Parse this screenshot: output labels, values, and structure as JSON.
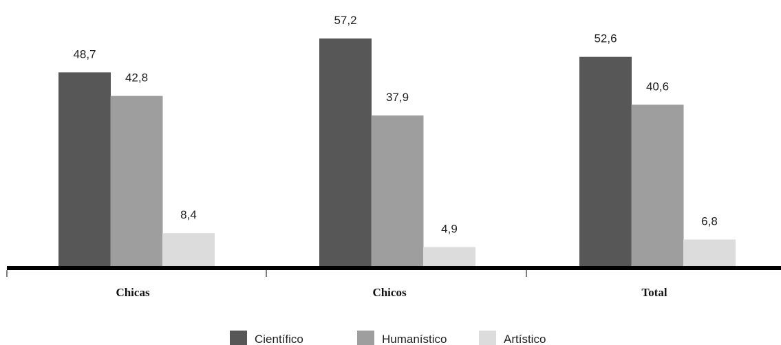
{
  "chart_data": {
    "type": "bar",
    "categories": [
      "Chicas",
      "Chicos",
      "Total"
    ],
    "series": [
      {
        "name": "Científico",
        "values": [
          48.7,
          57.2,
          52.6
        ],
        "labels": [
          "48,7",
          "57,2",
          "52,6"
        ],
        "color": "#575757"
      },
      {
        "name": "Humanístico",
        "values": [
          42.8,
          37.9,
          40.6
        ],
        "labels": [
          "42,8",
          "37,9",
          "40,6"
        ],
        "color": "#9e9e9e"
      },
      {
        "name": "Artístico",
        "values": [
          8.4,
          4.9,
          6.8
        ],
        "labels": [
          "8,4",
          "4,9",
          "6,8"
        ],
        "color": "#dcdcdc"
      }
    ],
    "ylim": [
      0,
      57.2
    ],
    "grid": false,
    "legend_position": "bottom-center"
  }
}
